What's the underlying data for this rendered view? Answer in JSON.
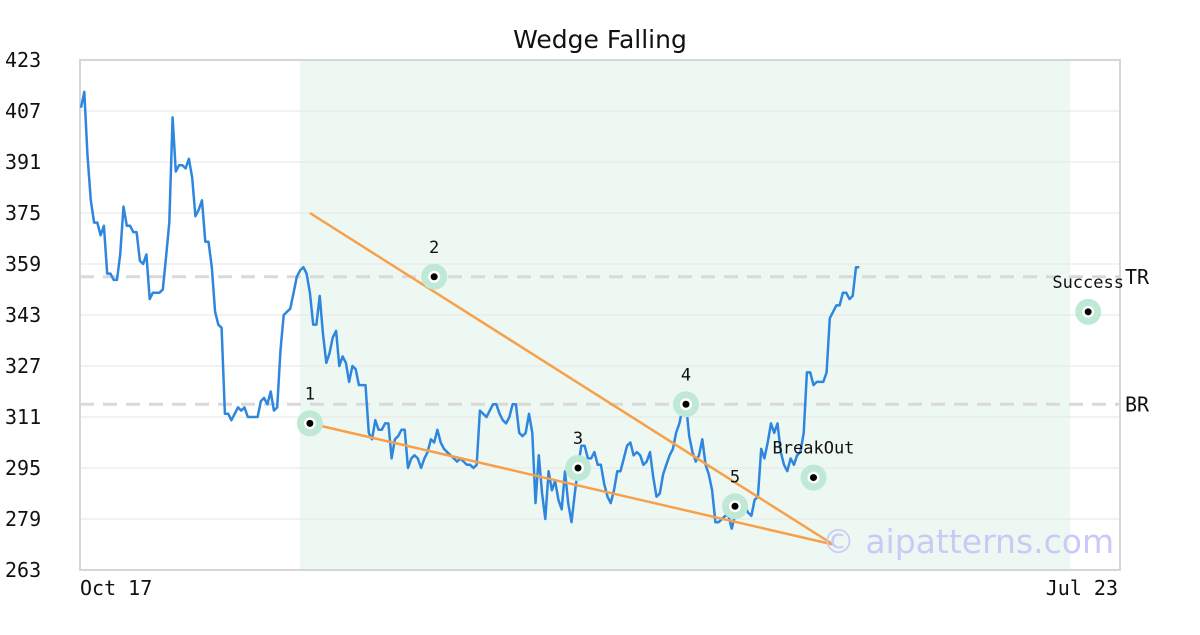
{
  "chart_data": {
    "type": "line",
    "title": "Wedge Falling",
    "xlabel": "",
    "ylabel": "",
    "ylim": [
      263,
      423
    ],
    "yticks": [
      263,
      279,
      295,
      311,
      327,
      343,
      359,
      375,
      391,
      407,
      423
    ],
    "x_tick_labels": [
      {
        "index": 0,
        "label": "Oct 17"
      },
      {
        "index": 319,
        "label": "Jul 23"
      }
    ],
    "grid": true,
    "pattern_region": {
      "start_index": 70,
      "end_index": 301
    },
    "colors": {
      "line": "#2e86de",
      "pattern_lines": "#f7a04a",
      "marker_halo": "#bfe9d4",
      "region_fill": "#eef8f3",
      "hline": "#d9d9d9",
      "watermark": "#c9caf6"
    },
    "series": [
      {
        "values": [
          408,
          413,
          393,
          379,
          372,
          372,
          368,
          371,
          356,
          356,
          354,
          354,
          362,
          377,
          371,
          371,
          369,
          369,
          360,
          359,
          362,
          348,
          350,
          350,
          350,
          351,
          361,
          372,
          405,
          388,
          390,
          390,
          389,
          392,
          386,
          374,
          376,
          379,
          366,
          366,
          358,
          344,
          340,
          339,
          312,
          312,
          310,
          312,
          314,
          313,
          314,
          311,
          311,
          311,
          311,
          316,
          317,
          315,
          319,
          313,
          314,
          332,
          343,
          344,
          345,
          350,
          355,
          357,
          358,
          356,
          350,
          340,
          340,
          349,
          337,
          328,
          331,
          336,
          338,
          327,
          330,
          328,
          322,
          327,
          326,
          321,
          321,
          321,
          306,
          304,
          310,
          307,
          307,
          309,
          309,
          298,
          304,
          305,
          307,
          307,
          295,
          298,
          299,
          298,
          295,
          298,
          300,
          304,
          303,
          307,
          303,
          301,
          300,
          299,
          298,
          297,
          298,
          297,
          296,
          296,
          295,
          296,
          313,
          312,
          311,
          313,
          315,
          315,
          312,
          310,
          309,
          311,
          315,
          315,
          306,
          305,
          306,
          312,
          306,
          284,
          299,
          287,
          279,
          294,
          288,
          291,
          285,
          282,
          294,
          284,
          278,
          287,
          295,
          302,
          302,
          298,
          298,
          300,
          296,
          296,
          290,
          286,
          284,
          288,
          294,
          294,
          298,
          302,
          303,
          299,
          300,
          299,
          296,
          297,
          300,
          292,
          286,
          287,
          293,
          296,
          299,
          301,
          306,
          309,
          314,
          315,
          305,
          300,
          297,
          299,
          304,
          296,
          293,
          288,
          278,
          278,
          279,
          280,
          280,
          276,
          280,
          281,
          283,
          283,
          281,
          280,
          285,
          286,
          301,
          298,
          303,
          309,
          306,
          309,
          300,
          296,
          294,
          298,
          296,
          299,
          300,
          306,
          325,
          325,
          321,
          322,
          322,
          322,
          325,
          342,
          344,
          346,
          346,
          350,
          350,
          348,
          349,
          358,
          358
        ]
      }
    ],
    "pattern_points": [
      {
        "label": "1",
        "index": 70,
        "value": 309
      },
      {
        "label": "2",
        "index": 108,
        "value": 355
      },
      {
        "label": "3",
        "index": 152,
        "value": 295
      },
      {
        "label": "4",
        "index": 185,
        "value": 315
      },
      {
        "label": "5",
        "index": 200,
        "value": 283
      },
      {
        "label": "BreakOut",
        "index": 224,
        "value": 292
      },
      {
        "label": "Success",
        "index": 308,
        "value": 344
      }
    ],
    "trend_lines": [
      {
        "from": {
          "index": 70,
          "value": 375
        },
        "to": {
          "index": 230,
          "value": 271
        }
      },
      {
        "from": {
          "index": 70,
          "value": 309
        },
        "to": {
          "index": 230,
          "value": 271
        }
      }
    ],
    "horizontal_lines": [
      {
        "label": "TR",
        "value": 355
      },
      {
        "label": "BR",
        "value": 315
      }
    ],
    "watermark": "© aipatterns.com"
  }
}
